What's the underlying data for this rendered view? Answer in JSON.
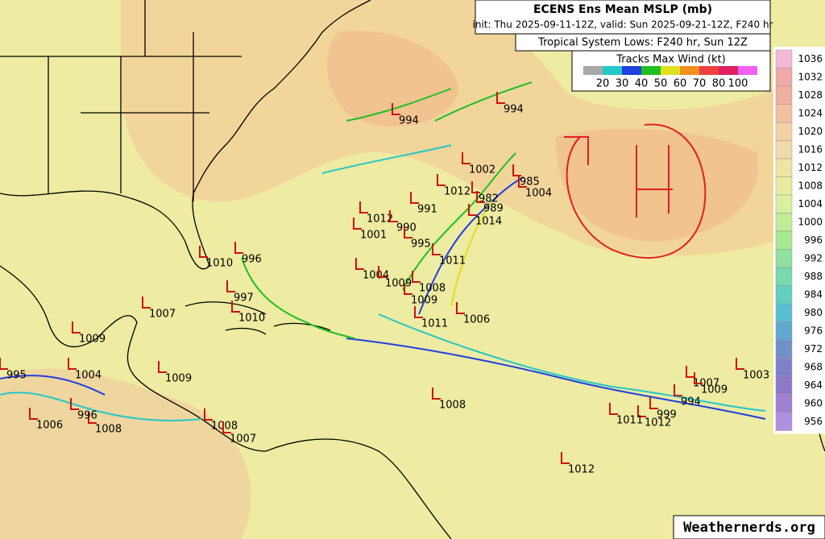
{
  "header": {
    "title": "ECENS Ens Mean MSLP (mb)",
    "subtitle": "init: Thu 2025-09-11-12Z, valid: Sun 2025-09-21-12Z, F240 hr"
  },
  "lows_title": "Tropical System Lows: F240 hr, Sun 12Z",
  "wind_legend": {
    "title": "Tracks Max Wind (kt)",
    "colors": [
      "#a8a8a8",
      "#22c8c8",
      "#2040e0",
      "#20c020",
      "#e0e020",
      "#f09020",
      "#f04040",
      "#e02060",
      "#f060f0"
    ],
    "labels": [
      "20",
      "30",
      "40",
      "50",
      "60",
      "70",
      "80",
      "100"
    ]
  },
  "pressure_scale": [
    "1036",
    "1032",
    "1028",
    "1024",
    "1020",
    "1016",
    "1012",
    "1008",
    "1004",
    "1000",
    "996",
    "992",
    "988",
    "984",
    "980",
    "976",
    "972",
    "968",
    "964",
    "960",
    "956"
  ],
  "map_labels": [
    "994",
    "994",
    "1002",
    "985",
    "1004",
    "1012",
    "982",
    "989",
    "991",
    "1014",
    "1012",
    "990",
    "1001",
    "996",
    "1010",
    "995",
    "1011",
    "1004",
    "1009",
    "1008",
    "997",
    "1007",
    "1010",
    "1011",
    "1006",
    "1009",
    "1009",
    "1004",
    "995",
    "1009",
    "1003",
    "1007",
    "1009",
    "994",
    "999",
    "1012",
    "1011",
    "1008",
    "1008",
    "1006",
    "996",
    "1008",
    "1007",
    "1012"
  ],
  "credit": "Weathernerds.org"
}
